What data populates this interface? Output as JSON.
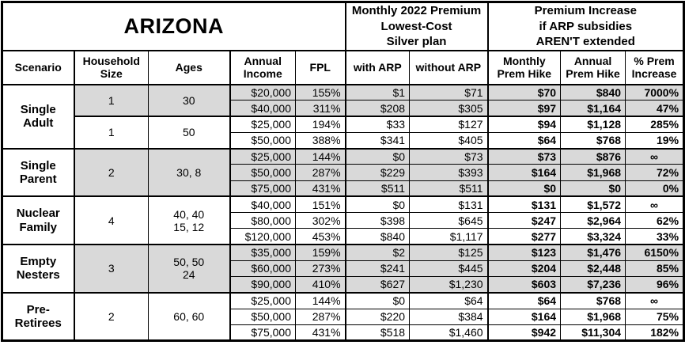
{
  "title": "ARIZONA",
  "colors": {
    "shaded_row": "#d9d9d9",
    "border": "#000000",
    "background": "#ffffff"
  },
  "header": {
    "premium_group": "Monthly 2022 Premium\nLowest-Cost\nSilver plan",
    "increase_group": "Premium Increase\nif ARP subsidies\nAREN'T extended",
    "columns": {
      "scenario": "Scenario",
      "household": "Household\nSize",
      "ages": "Ages",
      "income": "Annual\nIncome",
      "fpl": "FPL",
      "with_arp": "with ARP",
      "without_arp": "without ARP",
      "monthly_hike": "Monthly\nPrem Hike",
      "annual_hike": "Annual\nPrem Hike",
      "pct_increase": "% Prem\nIncrease"
    }
  },
  "sections": [
    {
      "scenario": "Single\nAdult",
      "groups": [
        {
          "household": "1",
          "ages": "30",
          "shaded": true,
          "rows": [
            [
              "$20,000",
              "155%",
              "$1",
              "$71",
              "$70",
              "$840",
              "7000%"
            ],
            [
              "$40,000",
              "311%",
              "$208",
              "$305",
              "$97",
              "$1,164",
              "47%"
            ]
          ]
        },
        {
          "household": "1",
          "ages": "50",
          "shaded": false,
          "rows": [
            [
              "$25,000",
              "194%",
              "$33",
              "$127",
              "$94",
              "$1,128",
              "285%"
            ],
            [
              "$50,000",
              "388%",
              "$341",
              "$405",
              "$64",
              "$768",
              "19%"
            ]
          ]
        }
      ]
    },
    {
      "scenario": "Single\nParent",
      "groups": [
        {
          "household": "2",
          "ages": "30, 8",
          "shaded": true,
          "rows": [
            [
              "$25,000",
              "144%",
              "$0",
              "$73",
              "$73",
              "$876",
              "∞"
            ],
            [
              "$50,000",
              "287%",
              "$229",
              "$393",
              "$164",
              "$1,968",
              "72%"
            ],
            [
              "$75,000",
              "431%",
              "$511",
              "$511",
              "$0",
              "$0",
              "0%"
            ]
          ]
        }
      ]
    },
    {
      "scenario": "Nuclear\nFamily",
      "groups": [
        {
          "household": "4",
          "ages": "40, 40\n15, 12",
          "shaded": false,
          "rows": [
            [
              "$40,000",
              "151%",
              "$0",
              "$131",
              "$131",
              "$1,572",
              "∞"
            ],
            [
              "$80,000",
              "302%",
              "$398",
              "$645",
              "$247",
              "$2,964",
              "62%"
            ],
            [
              "$120,000",
              "453%",
              "$840",
              "$1,117",
              "$277",
              "$3,324",
              "33%"
            ]
          ]
        }
      ]
    },
    {
      "scenario": "Empty\nNesters",
      "groups": [
        {
          "household": "3",
          "ages": "50, 50\n24",
          "shaded": true,
          "rows": [
            [
              "$35,000",
              "159%",
              "$2",
              "$125",
              "$123",
              "$1,476",
              "6150%"
            ],
            [
              "$60,000",
              "273%",
              "$241",
              "$445",
              "$204",
              "$2,448",
              "85%"
            ],
            [
              "$90,000",
              "410%",
              "$627",
              "$1,230",
              "$603",
              "$7,236",
              "96%"
            ]
          ]
        }
      ]
    },
    {
      "scenario": "Pre-\nRetirees",
      "groups": [
        {
          "household": "2",
          "ages": "60, 60",
          "shaded": false,
          "rows": [
            [
              "$25,000",
              "144%",
              "$0",
              "$64",
              "$64",
              "$768",
              "∞"
            ],
            [
              "$50,000",
              "287%",
              "$220",
              "$384",
              "$164",
              "$1,968",
              "75%"
            ],
            [
              "$75,000",
              "431%",
              "$518",
              "$1,460",
              "$942",
              "$11,304",
              "182%"
            ]
          ]
        }
      ]
    }
  ]
}
